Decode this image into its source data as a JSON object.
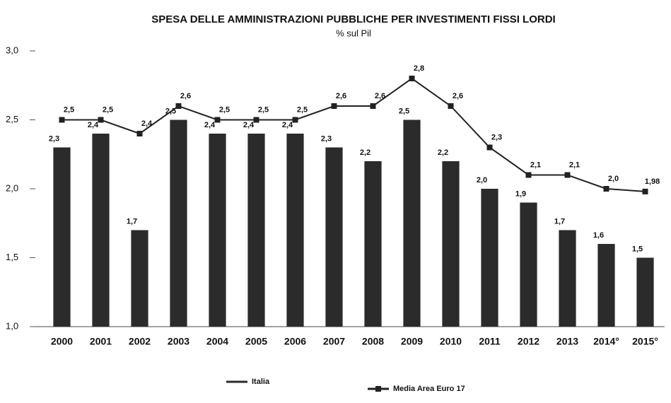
{
  "chart_data": {
    "type": "bar_line",
    "title": "SPESA DELLE AMMINISTRAZIONI PUBBLICHE PER INVESTIMENTI FISSI LORDI",
    "subtitle": "% sul Pil",
    "categories": [
      "2000",
      "2001",
      "2002",
      "2003",
      "2004",
      "2005",
      "2006",
      "2007",
      "2008",
      "2009",
      "2010",
      "2011",
      "2012",
      "2013",
      "2014°",
      "2015°"
    ],
    "series": [
      {
        "name": "Italia",
        "type": "bar",
        "color": "#2b2b2b",
        "values": [
          2.3,
          2.4,
          1.7,
          2.5,
          2.4,
          2.4,
          2.4,
          2.3,
          2.2,
          2.5,
          2.2,
          2.0,
          1.9,
          1.7,
          1.6,
          1.5
        ],
        "value_labels": [
          "2,3",
          "2,4",
          "1,7",
          "2,5",
          "2,4",
          "2,4",
          "2,4",
          "2,3",
          "2,2",
          "2,5",
          "2,2",
          "2,0",
          "1,9",
          "1,7",
          "1,6",
          "1,5"
        ]
      },
      {
        "name": "Media Area Euro 17",
        "type": "line",
        "color": "#222222",
        "values": [
          2.5,
          2.5,
          2.4,
          2.6,
          2.5,
          2.5,
          2.5,
          2.6,
          2.6,
          2.8,
          2.6,
          2.3,
          2.1,
          2.1,
          2.0,
          1.98
        ],
        "value_labels": [
          "2,5",
          "2,5",
          "2,4",
          "2,6",
          "2,5",
          "2,5",
          "2,5",
          "2,6",
          "2,6",
          "2,8",
          "2,6",
          "2,3",
          "2,1",
          "2,1",
          "2,0",
          "1,98"
        ]
      }
    ],
    "ylim": [
      1.0,
      3.0
    ],
    "yticks": [
      {
        "value": 1.0,
        "label": "1,0"
      },
      {
        "value": 1.5,
        "label": "1,5"
      },
      {
        "value": 2.0,
        "label": "2,0"
      },
      {
        "value": 2.5,
        "label": "2,5"
      },
      {
        "value": 3.0,
        "label": "3,0"
      }
    ],
    "grid": false
  }
}
